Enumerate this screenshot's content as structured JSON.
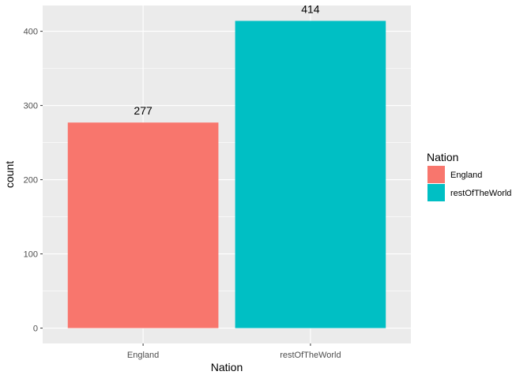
{
  "chart_data": {
    "type": "bar",
    "categories": [
      "England",
      "restOfTheWorld"
    ],
    "values": [
      277,
      414
    ],
    "colors": [
      "#F8766D",
      "#00BFC4"
    ],
    "data_labels": [
      "277",
      "414"
    ],
    "xlabel": "Nation",
    "ylabel": "count",
    "ylim": [
      -20.7,
      434.7
    ],
    "yticks": [
      0,
      100,
      200,
      300,
      400
    ],
    "ytick_labels": [
      "0",
      "100",
      "200",
      "300",
      "400"
    ],
    "grid": true,
    "panel_background": "#EBEBEB",
    "grid_color": "#FFFFFF",
    "legend": {
      "title": "Nation",
      "placement": "right",
      "entries": [
        {
          "label": "England",
          "color": "#F8766D"
        },
        {
          "label": "restOfTheWorld",
          "color": "#00BFC4"
        }
      ]
    }
  }
}
